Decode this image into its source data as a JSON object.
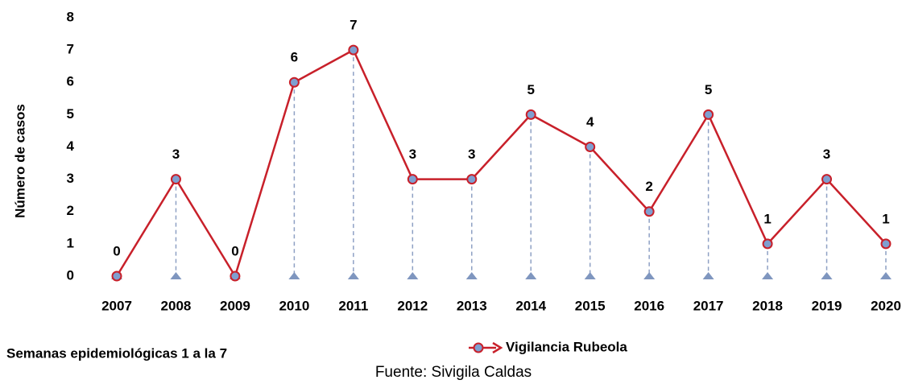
{
  "chart_data": {
    "type": "line",
    "y_label": "Número de casos",
    "x_label": "Semanas epidemiológicas 1 a la 7",
    "source": "Fuente: Sivigila Caldas",
    "categories": [
      "2007",
      "2008",
      "2009",
      "2010",
      "2011",
      "2012",
      "2013",
      "2014",
      "2015",
      "2016",
      "2017",
      "2018",
      "2019",
      "2020"
    ],
    "series": [
      {
        "name": "Vigilancia Rubeola",
        "color": "#c8202a",
        "marker_color": "#7f9fd0",
        "values": [
          0,
          3,
          0,
          6,
          7,
          3,
          3,
          5,
          4,
          2,
          5,
          1,
          3,
          1
        ]
      }
    ],
    "ylim": [
      0,
      8
    ],
    "yticks": [
      0,
      1,
      2,
      3,
      4,
      5,
      6,
      7,
      8
    ],
    "grid": false,
    "legend": "bottom"
  }
}
